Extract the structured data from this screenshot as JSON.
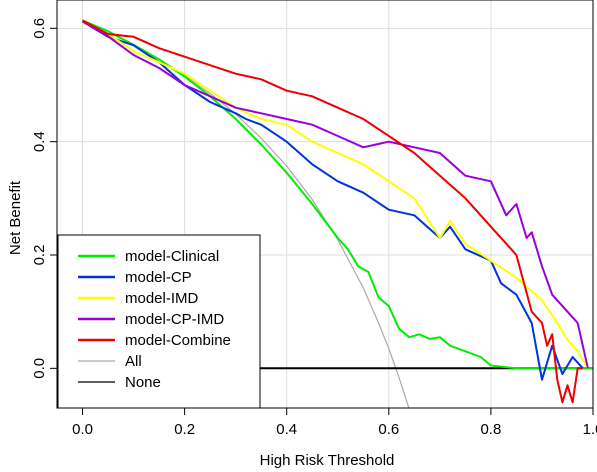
{
  "chart_data": {
    "type": "line",
    "title": "",
    "xlabel": "High Risk Threshold",
    "ylabel": "Net Benefit",
    "xlim": [
      -0.05,
      1.0
    ],
    "ylim": [
      -0.07,
      0.65
    ],
    "xticks": [
      0.0,
      0.2,
      0.4,
      0.6,
      0.8,
      1.0
    ],
    "yticks": [
      0.0,
      0.2,
      0.4,
      0.6
    ],
    "xtick_labels": [
      "0.0",
      "0.2",
      "0.4",
      "0.6",
      "0.8",
      "1.0"
    ],
    "ytick_labels": [
      "0.0",
      "0.2",
      "0.4",
      "0.6"
    ],
    "grid": true,
    "legend_position": "bottom-left",
    "series": [
      {
        "name": "model-Clinical",
        "color": "#00ee00",
        "x": [
          0.0,
          0.05,
          0.1,
          0.15,
          0.2,
          0.25,
          0.3,
          0.35,
          0.4,
          0.45,
          0.5,
          0.52,
          0.54,
          0.56,
          0.58,
          0.6,
          0.62,
          0.64,
          0.66,
          0.68,
          0.7,
          0.72,
          0.75,
          0.78,
          0.8,
          0.85,
          0.9,
          0.95,
          1.0
        ],
        "y": [
          0.614,
          0.595,
          0.571,
          0.545,
          0.515,
          0.48,
          0.44,
          0.395,
          0.345,
          0.29,
          0.23,
          0.21,
          0.18,
          0.17,
          0.125,
          0.11,
          0.07,
          0.055,
          0.06,
          0.052,
          0.055,
          0.04,
          0.03,
          0.02,
          0.005,
          0.0,
          0.0,
          0.0,
          0.0
        ]
      },
      {
        "name": "model-CP",
        "color": "#0033dd",
        "x": [
          0.0,
          0.05,
          0.1,
          0.15,
          0.2,
          0.25,
          0.3,
          0.32,
          0.35,
          0.4,
          0.45,
          0.5,
          0.55,
          0.6,
          0.65,
          0.7,
          0.72,
          0.75,
          0.8,
          0.82,
          0.85,
          0.88,
          0.9,
          0.92,
          0.94,
          0.96,
          0.98
        ],
        "y": [
          0.612,
          0.585,
          0.57,
          0.54,
          0.5,
          0.47,
          0.45,
          0.44,
          0.43,
          0.4,
          0.36,
          0.33,
          0.31,
          0.28,
          0.27,
          0.23,
          0.25,
          0.21,
          0.19,
          0.15,
          0.13,
          0.08,
          -0.02,
          0.04,
          -0.01,
          0.02,
          0.0
        ]
      },
      {
        "name": "model-IMD",
        "color": "#ffff00",
        "x": [
          0.0,
          0.05,
          0.1,
          0.15,
          0.2,
          0.25,
          0.3,
          0.35,
          0.4,
          0.45,
          0.5,
          0.55,
          0.6,
          0.65,
          0.7,
          0.72,
          0.75,
          0.8,
          0.85,
          0.9,
          0.93,
          0.95,
          0.97,
          0.99
        ],
        "y": [
          0.61,
          0.59,
          0.56,
          0.54,
          0.52,
          0.49,
          0.46,
          0.44,
          0.43,
          0.4,
          0.38,
          0.36,
          0.33,
          0.3,
          0.23,
          0.26,
          0.22,
          0.19,
          0.16,
          0.12,
          0.08,
          0.05,
          0.03,
          0.0
        ]
      },
      {
        "name": "model-CP-IMD",
        "color": "#9900dd",
        "x": [
          0.0,
          0.05,
          0.1,
          0.15,
          0.2,
          0.25,
          0.3,
          0.35,
          0.4,
          0.45,
          0.5,
          0.55,
          0.6,
          0.65,
          0.7,
          0.75,
          0.8,
          0.83,
          0.85,
          0.87,
          0.88,
          0.9,
          0.92,
          0.95,
          0.97,
          0.99
        ],
        "y": [
          0.612,
          0.586,
          0.553,
          0.53,
          0.5,
          0.48,
          0.46,
          0.45,
          0.44,
          0.43,
          0.41,
          0.39,
          0.4,
          0.39,
          0.38,
          0.34,
          0.33,
          0.27,
          0.29,
          0.23,
          0.24,
          0.18,
          0.13,
          0.1,
          0.08,
          0.0
        ]
      },
      {
        "name": "model-Combine",
        "color": "#ee0000",
        "x": [
          0.0,
          0.05,
          0.1,
          0.15,
          0.2,
          0.25,
          0.3,
          0.35,
          0.4,
          0.45,
          0.5,
          0.55,
          0.6,
          0.65,
          0.7,
          0.75,
          0.8,
          0.85,
          0.88,
          0.9,
          0.91,
          0.92,
          0.93,
          0.94,
          0.95,
          0.96,
          0.97,
          0.98
        ],
        "y": [
          0.614,
          0.59,
          0.585,
          0.565,
          0.55,
          0.535,
          0.52,
          0.51,
          0.49,
          0.48,
          0.46,
          0.44,
          0.41,
          0.38,
          0.34,
          0.3,
          0.25,
          0.2,
          0.1,
          0.08,
          0.04,
          0.06,
          -0.02,
          -0.06,
          -0.03,
          -0.06,
          0.0,
          0.0
        ]
      },
      {
        "name": "All",
        "color": "#aaaaaa",
        "x": [
          0.0,
          0.05,
          0.1,
          0.15,
          0.2,
          0.25,
          0.3,
          0.35,
          0.4,
          0.45,
          0.5,
          0.55,
          0.58,
          0.6,
          0.62,
          0.64
        ],
        "y": [
          0.614,
          0.594,
          0.571,
          0.546,
          0.517,
          0.485,
          0.449,
          0.406,
          0.357,
          0.298,
          0.227,
          0.142,
          0.08,
          0.035,
          -0.016,
          -0.072
        ]
      },
      {
        "name": "None",
        "color": "#000000",
        "x": [
          0.0,
          1.0
        ],
        "y": [
          0.0,
          0.0
        ]
      }
    ]
  }
}
